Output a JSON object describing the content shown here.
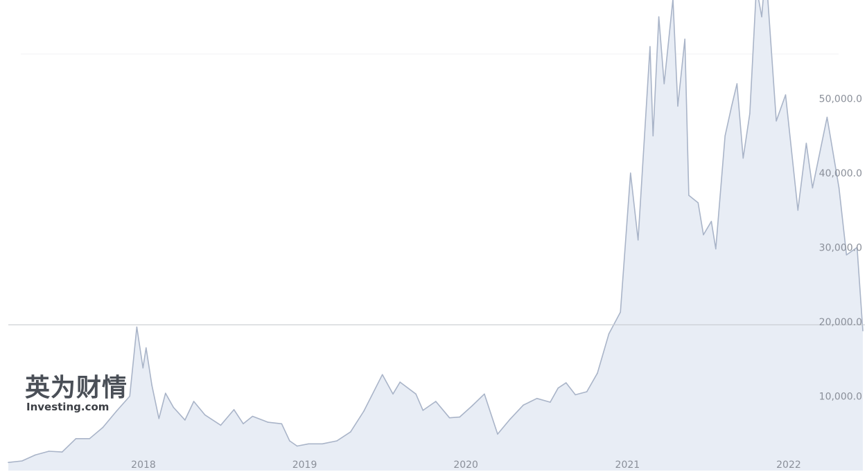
{
  "chart_data": {
    "type": "area",
    "title": "",
    "xlabel": "",
    "ylabel": "",
    "ylim": [
      0,
      62000
    ],
    "y_ticks": [
      "10,000.0",
      "20,000.0",
      "30,000.0",
      "40,000.0",
      "50,000.0"
    ],
    "y_tick_values": [
      10000,
      20000,
      30000,
      40000,
      50000
    ],
    "x_ticks": [
      "2018",
      "2019",
      "2020",
      "2021",
      "2022"
    ],
    "x_tick_dates": [
      "2018-01-01",
      "2019-01-01",
      "2020-01-01",
      "2021-01-01",
      "2022-01-01"
    ],
    "reference_line": 19600,
    "colors": {
      "line": "#a9b4c8",
      "fill": "#e8edf5",
      "reference": "#c8cbd0"
    },
    "series": [
      {
        "values": [
          [
            "2017-03-01",
            1100
          ],
          [
            "2017-04-01",
            1300
          ],
          [
            "2017-05-01",
            2100
          ],
          [
            "2017-06-01",
            2600
          ],
          [
            "2017-07-01",
            2500
          ],
          [
            "2017-08-01",
            4300
          ],
          [
            "2017-09-01",
            4300
          ],
          [
            "2017-10-01",
            5800
          ],
          [
            "2017-11-01",
            8000
          ],
          [
            "2017-12-01",
            10000
          ],
          [
            "2017-12-17",
            19300
          ],
          [
            "2017-12-31",
            13800
          ],
          [
            "2018-01-07",
            16500
          ],
          [
            "2018-01-20",
            11500
          ],
          [
            "2018-02-05",
            7000
          ],
          [
            "2018-02-20",
            10400
          ],
          [
            "2018-03-10",
            8500
          ],
          [
            "2018-04-05",
            6800
          ],
          [
            "2018-04-25",
            9300
          ],
          [
            "2018-05-20",
            7500
          ],
          [
            "2018-06-25",
            6100
          ],
          [
            "2018-07-25",
            8200
          ],
          [
            "2018-08-15",
            6300
          ],
          [
            "2018-09-05",
            7300
          ],
          [
            "2018-10-10",
            6500
          ],
          [
            "2018-11-10",
            6300
          ],
          [
            "2018-11-28",
            4000
          ],
          [
            "2018-12-15",
            3300
          ],
          [
            "2019-01-10",
            3600
          ],
          [
            "2019-02-10",
            3600
          ],
          [
            "2019-03-15",
            4000
          ],
          [
            "2019-04-15",
            5200
          ],
          [
            "2019-05-15",
            8000
          ],
          [
            "2019-06-26",
            12900
          ],
          [
            "2019-07-20",
            10300
          ],
          [
            "2019-08-05",
            11900
          ],
          [
            "2019-09-10",
            10300
          ],
          [
            "2019-09-26",
            8100
          ],
          [
            "2019-10-25",
            9300
          ],
          [
            "2019-11-25",
            7100
          ],
          [
            "2019-12-18",
            7200
          ],
          [
            "2020-01-15",
            8700
          ],
          [
            "2020-02-12",
            10300
          ],
          [
            "2020-03-13",
            4900
          ],
          [
            "2020-04-10",
            6900
          ],
          [
            "2020-05-10",
            8800
          ],
          [
            "2020-06-10",
            9700
          ],
          [
            "2020-07-10",
            9200
          ],
          [
            "2020-07-28",
            11100
          ],
          [
            "2020-08-15",
            11800
          ],
          [
            "2020-09-05",
            10200
          ],
          [
            "2020-10-01",
            10600
          ],
          [
            "2020-10-25",
            13100
          ],
          [
            "2020-11-20",
            18400
          ],
          [
            "2020-12-16",
            21300
          ],
          [
            "2021-01-08",
            40000
          ],
          [
            "2021-01-25",
            31000
          ],
          [
            "2021-02-21",
            57000
          ],
          [
            "2021-02-28",
            45000
          ],
          [
            "2021-03-13",
            61000
          ],
          [
            "2021-03-25",
            52000
          ],
          [
            "2021-04-14",
            63400
          ],
          [
            "2021-04-25",
            49000
          ],
          [
            "2021-05-11",
            58000
          ],
          [
            "2021-05-20",
            37000
          ],
          [
            "2021-06-10",
            36000
          ],
          [
            "2021-06-22",
            31700
          ],
          [
            "2021-07-10",
            33500
          ],
          [
            "2021-07-20",
            29800
          ],
          [
            "2021-08-10",
            45000
          ],
          [
            "2021-08-25",
            49000
          ],
          [
            "2021-09-06",
            52000
          ],
          [
            "2021-09-20",
            42000
          ],
          [
            "2021-10-05",
            48000
          ],
          [
            "2021-10-20",
            65000
          ],
          [
            "2021-11-01",
            61000
          ],
          [
            "2021-11-10",
            67500
          ],
          [
            "2021-12-04",
            47000
          ],
          [
            "2021-12-25",
            50500
          ],
          [
            "2022-01-22",
            35000
          ],
          [
            "2022-02-10",
            44000
          ],
          [
            "2022-02-24",
            38000
          ],
          [
            "2022-03-29",
            47500
          ],
          [
            "2022-04-25",
            38000
          ],
          [
            "2022-05-12",
            29000
          ],
          [
            "2022-06-05",
            30000
          ],
          [
            "2022-06-18",
            18800
          ]
        ]
      }
    ]
  },
  "watermark": {
    "cn": "英为财情",
    "en": "Investing.com"
  }
}
